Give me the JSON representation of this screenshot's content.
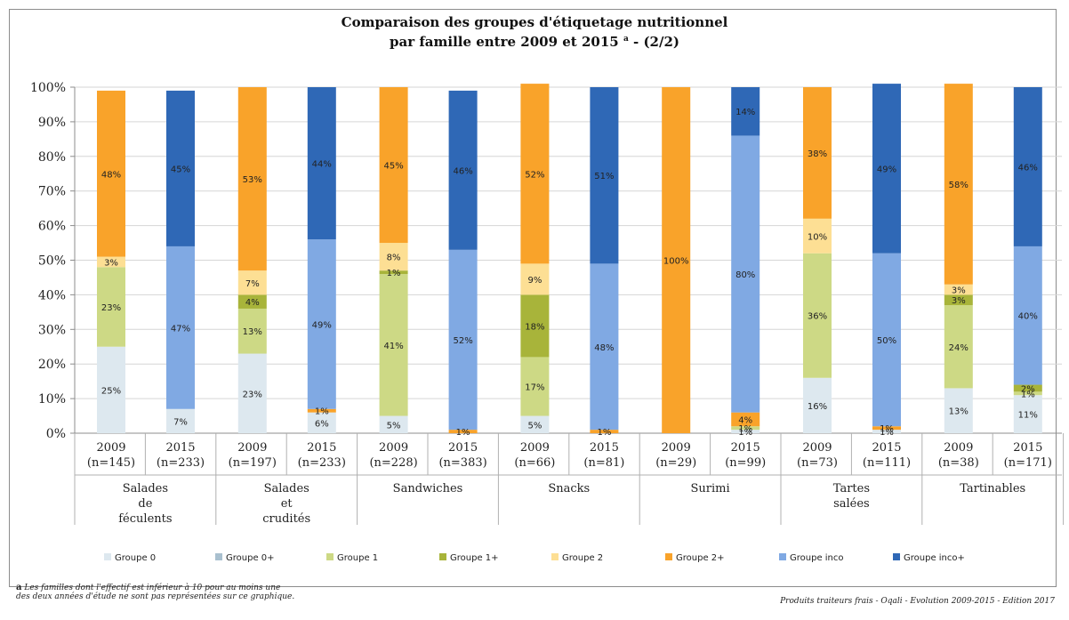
{
  "title_line1": "Comparaison des groupes d'étiquetage nutritionnel",
  "title_line2": "par famille entre 2009 et 2015",
  "title_sup": "a",
  "title_suffix": " - (2/2)",
  "footnote_marker": "a",
  "footnote_line1": "Les familles dont l'effectif est inférieur à 10 pour au moins une",
  "footnote_line2": "des deux années d'étude ne sont pas représentées sur ce graphique.",
  "source": "Produits traiteurs frais - Oqali - Evolution 2009-2015 - Edition 2017",
  "colors": {
    "Groupe 0": "#dde8ef",
    "Groupe 0+": "#a9c0cf",
    "Groupe 1": "#cdd985",
    "Groupe 1+": "#a8b43a",
    "Groupe 2": "#fddf94",
    "Groupe 2+": "#f9a32a",
    "Groupe inco": "#80a9e3",
    "Groupe inco+": "#2f68b6"
  },
  "chart_data": {
    "type": "bar",
    "stacked": true,
    "ylim": [
      0,
      100
    ],
    "y_ticks": [
      "0%",
      "10%",
      "20%",
      "30%",
      "40%",
      "50%",
      "60%",
      "70%",
      "80%",
      "90%",
      "100%"
    ],
    "groups": [
      {
        "label": [
          "Salades",
          "de",
          "féculents"
        ],
        "bars": [
          {
            "year": "2009",
            "n": "(n=145)"
          },
          {
            "year": "2015",
            "n": "(n=233)"
          }
        ]
      },
      {
        "label": [
          "Salades",
          "et",
          "crudités"
        ],
        "bars": [
          {
            "year": "2009",
            "n": "(n=197)"
          },
          {
            "year": "2015",
            "n": "(n=233)"
          }
        ]
      },
      {
        "label": [
          "Sandwiches"
        ],
        "bars": [
          {
            "year": "2009",
            "n": "(n=228)"
          },
          {
            "year": "2015",
            "n": "(n=383)"
          }
        ]
      },
      {
        "label": [
          "Snacks"
        ],
        "bars": [
          {
            "year": "2009",
            "n": "(n=66)"
          },
          {
            "year": "2015",
            "n": "(n=81)"
          }
        ]
      },
      {
        "label": [
          "Surimi"
        ],
        "bars": [
          {
            "year": "2009",
            "n": "(n=29)"
          },
          {
            "year": "2015",
            "n": "(n=99)"
          }
        ]
      },
      {
        "label": [
          "Tartes",
          "salées"
        ],
        "bars": [
          {
            "year": "2009",
            "n": "(n=73)"
          },
          {
            "year": "2015",
            "n": "(n=111)"
          }
        ]
      },
      {
        "label": [
          "Tartinables"
        ],
        "bars": [
          {
            "year": "2009",
            "n": "(n=38)"
          },
          {
            "year": "2015",
            "n": "(n=171)"
          }
        ]
      }
    ],
    "series": [
      {
        "name": "Groupe 0",
        "values": [
          25,
          7,
          23,
          6,
          5,
          0,
          5,
          0,
          0,
          1,
          16,
          1,
          13,
          11
        ]
      },
      {
        "name": "Groupe 0+",
        "values": [
          0,
          0,
          0,
          0,
          0,
          0,
          0,
          0,
          0,
          0,
          0,
          0,
          0,
          0
        ]
      },
      {
        "name": "Groupe 1",
        "values": [
          23,
          0,
          13,
          0,
          41,
          0,
          17,
          0,
          0,
          1,
          36,
          0,
          24,
          1
        ]
      },
      {
        "name": "Groupe 1+",
        "values": [
          0,
          0,
          4,
          0,
          1,
          0,
          18,
          0,
          0,
          0,
          0,
          0,
          3,
          2
        ]
      },
      {
        "name": "Groupe 2",
        "values": [
          3,
          0,
          7,
          0,
          8,
          0,
          9,
          0,
          0,
          0,
          10,
          0,
          3,
          0
        ]
      },
      {
        "name": "Groupe 2+",
        "values": [
          48,
          0,
          53,
          1,
          45,
          1,
          52,
          1,
          100,
          4,
          38,
          1,
          58,
          0
        ]
      },
      {
        "name": "Groupe inco",
        "values": [
          0,
          47,
          0,
          49,
          0,
          52,
          0,
          48,
          0,
          80,
          0,
          50,
          0,
          40
        ]
      },
      {
        "name": "Groupe inco+",
        "values": [
          0,
          45,
          0,
          44,
          0,
          46,
          0,
          51,
          0,
          14,
          0,
          49,
          0,
          46
        ]
      }
    ],
    "legend": [
      "Groupe 0",
      "Groupe 0+",
      "Groupe 1",
      "Groupe 1+",
      "Groupe 2",
      "Groupe 2+",
      "Groupe inco",
      "Groupe inco+"
    ],
    "legend_position": "bottom"
  }
}
